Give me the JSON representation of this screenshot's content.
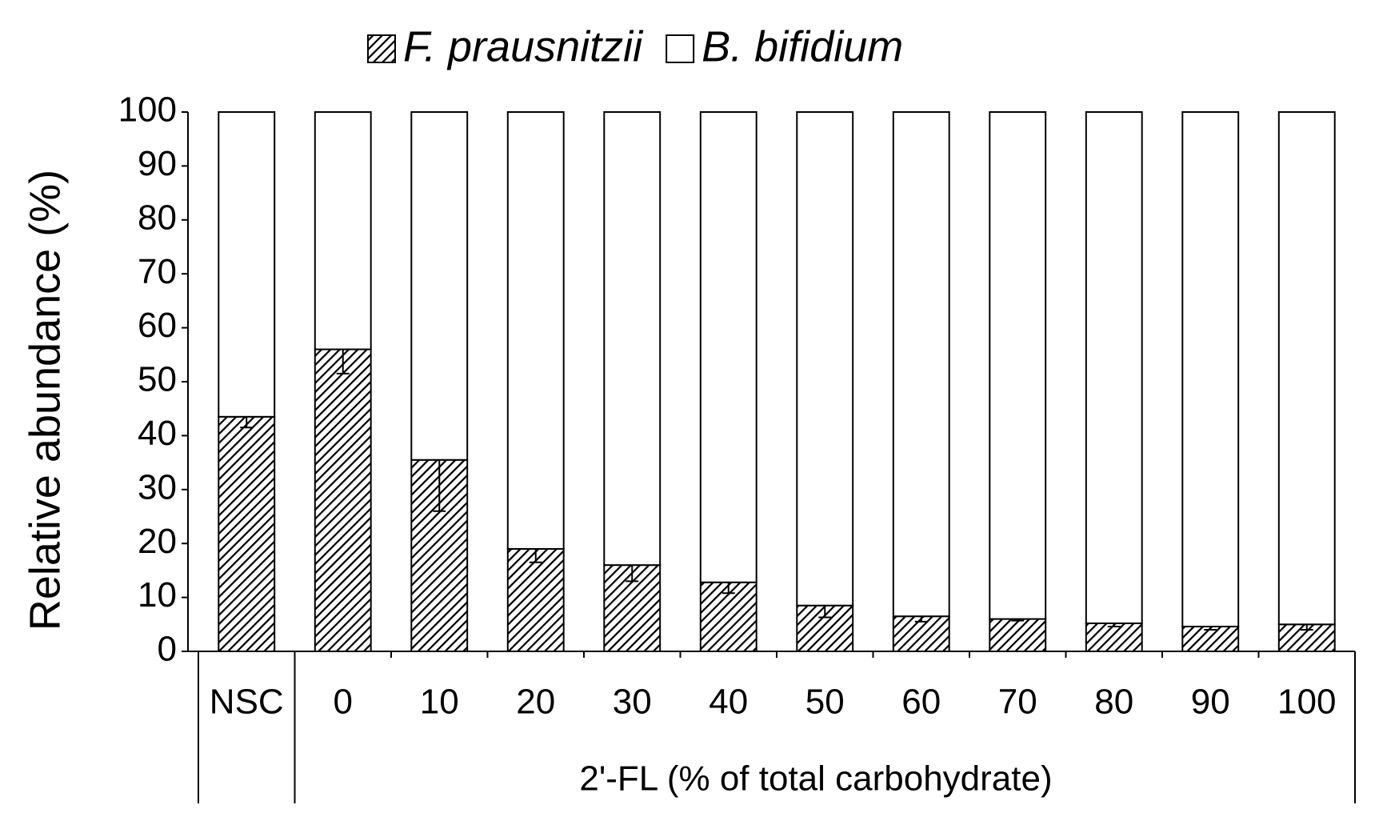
{
  "chart_data": {
    "type": "stacked-bar",
    "legend": [
      "F. prausnitzii",
      "B. bifidium"
    ],
    "y_label": "Relative abundance (%)",
    "x_label": "2'-FL (% of total carbohydrate)",
    "categories": [
      "NSC",
      "0",
      "10",
      "20",
      "30",
      "40",
      "50",
      "60",
      "70",
      "80",
      "90",
      "100"
    ],
    "series": [
      {
        "name": "F. prausnitzii",
        "color": "#000000",
        "hatch": true,
        "values": [
          43.5,
          56,
          35.5,
          19,
          16,
          12.8,
          8.5,
          6.5,
          6,
          5.2,
          4.6,
          5
        ],
        "errors": [
          2,
          4.5,
          9.5,
          2.5,
          3,
          2,
          2.2,
          1,
          0.3,
          0.6,
          0.6,
          1
        ]
      },
      {
        "name": "B. bifidium",
        "color": "#ffffff",
        "hatch": false,
        "values": [
          56.5,
          44,
          64.5,
          81,
          84,
          87.2,
          91.5,
          93.5,
          94,
          94.8,
          95.4,
          95
        ]
      }
    ],
    "ylim": [
      0,
      100
    ],
    "yticks": [
      0,
      10,
      20,
      30,
      40,
      50,
      60,
      70,
      80,
      90,
      100
    ]
  }
}
